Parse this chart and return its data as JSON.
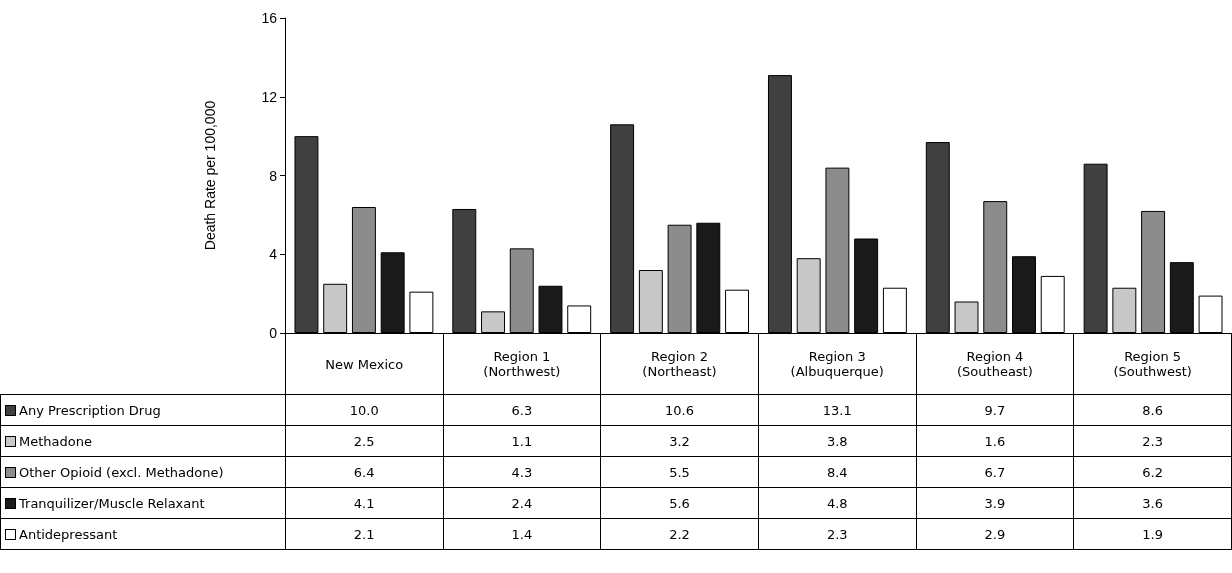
{
  "chart_data": {
    "type": "bar",
    "ylabel": "Death Rate per 100,000",
    "categories": [
      "New Mexico",
      "Region 1\n(Northwest)",
      "Region 2\n(Northeast)",
      "Region 3\n(Albuquerque)",
      "Region 4\n(Southeast)",
      "Region 5\n(Southwest)"
    ],
    "series": [
      {
        "name": "Any Prescription Drug",
        "color": "#404040",
        "values": [
          10.0,
          6.3,
          10.6,
          13.1,
          9.7,
          8.6
        ],
        "value_labels": [
          "10.0",
          "6.3",
          "10.6",
          "13.1",
          "9.7",
          "8.6"
        ]
      },
      {
        "name": "Methadone",
        "color": "#c8c8c8",
        "values": [
          2.5,
          1.1,
          3.2,
          3.8,
          1.6,
          2.3
        ],
        "value_labels": [
          "2.5",
          "1.1",
          "3.2",
          "3.8",
          "1.6",
          "2.3"
        ]
      },
      {
        "name": "Other Opioid (excl. Methadone)",
        "color": "#8c8c8c",
        "values": [
          6.4,
          4.3,
          5.5,
          8.4,
          6.7,
          6.2
        ],
        "value_labels": [
          "6.4",
          "4.3",
          "5.5",
          "8.4",
          "6.7",
          "6.2"
        ]
      },
      {
        "name": "Tranquilizer/Muscle Relaxant",
        "color": "#1a1a1a",
        "values": [
          4.1,
          2.4,
          5.6,
          4.8,
          3.9,
          3.6
        ],
        "value_labels": [
          "4.1",
          "2.4",
          "5.6",
          "4.8",
          "3.9",
          "3.6"
        ]
      },
      {
        "name": "Antidepressant",
        "color": "#ffffff",
        "values": [
          2.1,
          1.4,
          2.2,
          2.3,
          2.9,
          1.9
        ],
        "value_labels": [
          "2.1",
          "1.4",
          "2.2",
          "2.3",
          "2.9",
          "1.9"
        ]
      }
    ],
    "ylim": [
      0,
      16
    ],
    "yticks": [
      0,
      4,
      8,
      12,
      16
    ],
    "grid": false,
    "legend": "bottom left"
  }
}
